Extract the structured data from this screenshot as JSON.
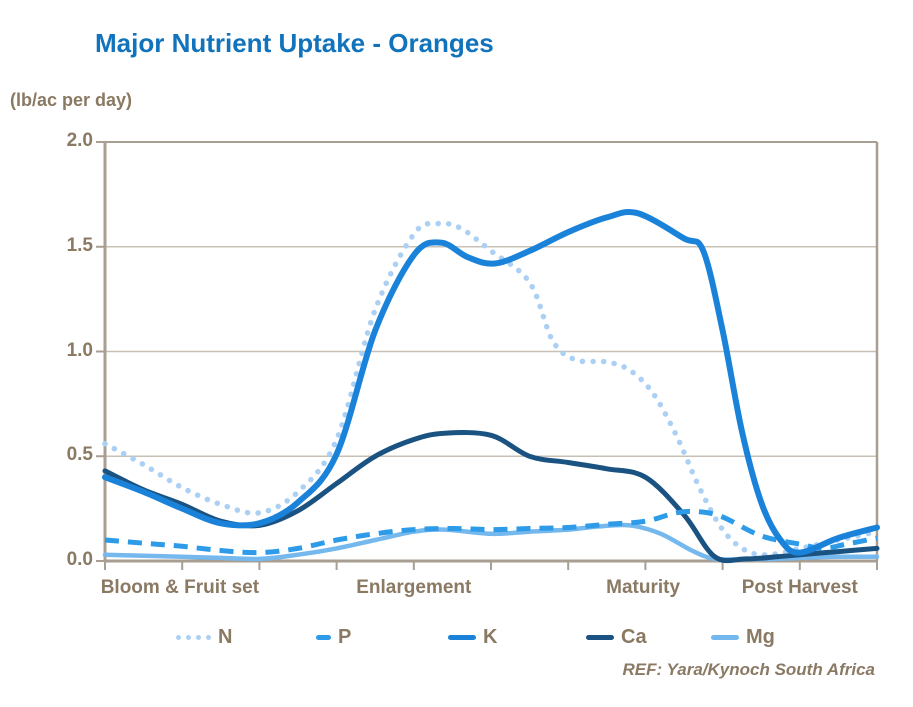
{
  "title": "Major Nutrient Uptake - Oranges",
  "ref_note": "REF: Yara/Kynoch South Africa",
  "colors": {
    "title_blue": "#1173BC",
    "axis_text_brown": "#8A7963",
    "axis_line_tan": "#A89E91",
    "gridline_gray": "#C8C0B5",
    "n_light_blue": "#ABD0F3",
    "p_bright_blue": "#2E9BE9",
    "k_blue": "#1A83D9",
    "ca_navy": "#1A5281",
    "mg_sky_blue": "#74B8ED"
  },
  "chart_data": {
    "type": "line",
    "title": "Major Nutrient Uptake - Oranges",
    "xlabel": "",
    "ylabel": "(lb/ac per day)",
    "ylim": [
      0,
      2.0
    ],
    "grid": "horizontal",
    "legend_position": "bottom",
    "y_ticks": [
      {
        "label": "2.0",
        "value": 2.0
      },
      {
        "label": "1.5",
        "value": 1.5
      },
      {
        "label": "1.0",
        "value": 1.0
      },
      {
        "label": "0.5",
        "value": 0.5
      },
      {
        "label": "0.0",
        "value": 0.0
      }
    ],
    "x_range_units": [
      0,
      10
    ],
    "x_tick_units": [
      0,
      1,
      2,
      3,
      4,
      5,
      6,
      7,
      8,
      9,
      10
    ],
    "x_stage_labels": [
      {
        "label": "Bloom & Fruit set",
        "unit": 0.97
      },
      {
        "label": "Enlargement",
        "unit": 4.0
      },
      {
        "label": "Maturity",
        "unit": 6.97
      },
      {
        "label": "Post Harvest",
        "unit": 9.0
      }
    ],
    "series": [
      {
        "name": "N",
        "color": "#ABD0F3",
        "style": "dotted",
        "width": 5.5,
        "x": [
          0,
          0.5,
          1,
          1.5,
          2,
          2.5,
          3,
          3.5,
          4,
          4.3,
          4.6,
          5,
          5.5,
          5.8,
          6.1,
          6.5,
          6.8,
          7.1,
          7.4,
          7.7,
          8,
          8.3,
          8.6,
          9,
          9.5,
          10
        ],
        "values": [
          0.56,
          0.46,
          0.35,
          0.27,
          0.23,
          0.33,
          0.58,
          1.2,
          1.56,
          1.61,
          1.59,
          1.48,
          1.33,
          1.05,
          0.96,
          0.95,
          0.91,
          0.8,
          0.6,
          0.35,
          0.15,
          0.05,
          0.03,
          0.06,
          0.1,
          0.14
        ]
      },
      {
        "name": "P",
        "color": "#2E9BE9",
        "style": "dashed",
        "width": 5,
        "x": [
          0,
          0.5,
          1,
          1.5,
          2,
          2.5,
          3,
          3.5,
          4,
          4.5,
          5,
          5.5,
          6,
          6.5,
          7,
          7.4,
          7.7,
          8,
          8.5,
          9,
          9.3,
          9.6,
          10
        ],
        "values": [
          0.1,
          0.085,
          0.07,
          0.05,
          0.04,
          0.06,
          0.1,
          0.13,
          0.15,
          0.155,
          0.15,
          0.155,
          0.16,
          0.175,
          0.19,
          0.23,
          0.235,
          0.21,
          0.12,
          0.08,
          0.06,
          0.08,
          0.11
        ]
      },
      {
        "name": "K",
        "color": "#1A83D9",
        "style": "solid",
        "width": 6,
        "x": [
          0,
          0.5,
          1,
          1.5,
          2,
          2.5,
          3,
          3.5,
          4,
          4.35,
          4.7,
          5.05,
          5.5,
          6,
          6.5,
          6.9,
          7.5,
          7.75,
          8,
          8.25,
          8.5,
          8.75,
          9,
          9.5,
          10
        ],
        "values": [
          0.4,
          0.33,
          0.25,
          0.18,
          0.18,
          0.28,
          0.51,
          1.1,
          1.46,
          1.52,
          1.45,
          1.42,
          1.48,
          1.57,
          1.64,
          1.66,
          1.54,
          1.48,
          1.1,
          0.62,
          0.28,
          0.1,
          0.04,
          0.11,
          0.16
        ]
      },
      {
        "name": "Ca",
        "color": "#1A5281",
        "style": "solid",
        "width": 5,
        "x": [
          0,
          0.5,
          1,
          1.5,
          2,
          2.5,
          3,
          3.5,
          4,
          4.4,
          5,
          5.5,
          6,
          6.5,
          7,
          7.5,
          7.9,
          8.3,
          8.7,
          9,
          9.5,
          10
        ],
        "values": [
          0.43,
          0.34,
          0.27,
          0.19,
          0.17,
          0.24,
          0.37,
          0.5,
          0.58,
          0.61,
          0.6,
          0.5,
          0.47,
          0.44,
          0.4,
          0.22,
          0.02,
          0.01,
          0.02,
          0.03,
          0.045,
          0.06
        ]
      },
      {
        "name": "Mg",
        "color": "#74B8ED",
        "style": "solid",
        "width": 4.5,
        "x": [
          0,
          0.5,
          1,
          1.5,
          2,
          2.5,
          3,
          3.5,
          4,
          4.4,
          5,
          5.5,
          6,
          6.4,
          6.8,
          7.2,
          7.6,
          7.9,
          8.3,
          8.7,
          9,
          9.5,
          10
        ],
        "values": [
          0.03,
          0.025,
          0.02,
          0.015,
          0.01,
          0.03,
          0.06,
          0.1,
          0.14,
          0.15,
          0.13,
          0.14,
          0.15,
          0.165,
          0.17,
          0.13,
          0.05,
          0.01,
          0.01,
          0.01,
          0.015,
          0.02,
          0.02
        ]
      }
    ]
  }
}
